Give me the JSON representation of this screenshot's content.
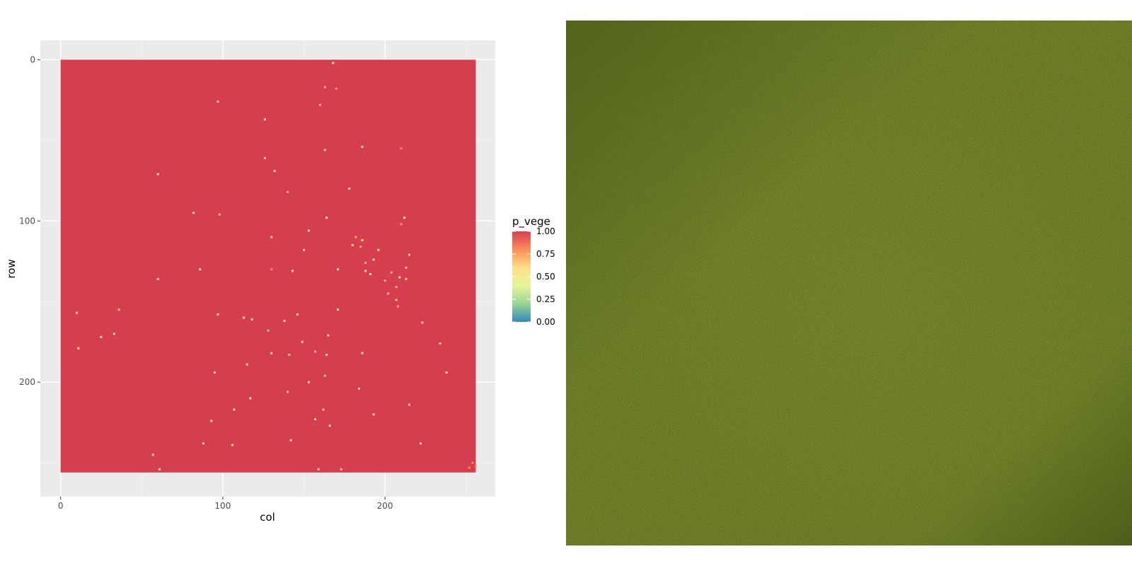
{
  "chart_data": {
    "type": "heatmap",
    "xlabel": "col",
    "ylabel": "row",
    "xlim": [
      -12.5,
      268
    ],
    "ylim_reversed": [
      -12,
      271
    ],
    "x_ticks": [
      0,
      100,
      200
    ],
    "y_ticks": [
      0,
      100,
      200
    ],
    "x_tick_labels": [
      "0",
      "100",
      "200"
    ],
    "y_tick_labels": [
      "0",
      "100",
      "200"
    ],
    "raster_extent": {
      "col": [
        0,
        256
      ],
      "row": [
        0,
        256
      ]
    },
    "background_value": 1.0,
    "fill_scale": {
      "name": "p_vege",
      "palette": "Spectral",
      "breaks": [
        1.0,
        0.75,
        0.5,
        0.25,
        0.0
      ],
      "break_labels": [
        "1.00",
        "0.75",
        "0.50",
        "0.25",
        "0.00"
      ],
      "colors": [
        "#d53e4f",
        "#fc8d59",
        "#fee08b",
        "#e6f598",
        "#99d594",
        "#3288bd"
      ]
    },
    "low_values": [
      [
        168,
        2,
        0.6
      ],
      [
        163,
        17,
        0.7
      ],
      [
        97,
        26,
        0.65
      ],
      [
        160,
        28,
        0.7
      ],
      [
        170,
        18,
        0.75
      ],
      [
        126,
        37,
        0.5
      ],
      [
        186,
        54,
        0.55
      ],
      [
        126,
        61,
        0.6
      ],
      [
        163,
        56,
        0.25
      ],
      [
        210,
        55,
        0.8
      ],
      [
        60,
        71,
        0.5
      ],
      [
        132,
        69,
        0.3
      ],
      [
        140,
        82,
        0.7
      ],
      [
        178,
        80,
        0.6
      ],
      [
        82,
        95,
        0.3
      ],
      [
        98,
        96,
        0.7
      ],
      [
        164,
        98,
        0.35
      ],
      [
        153,
        106,
        0.5
      ],
      [
        130,
        110,
        0.6
      ],
      [
        182,
        110,
        0.7
      ],
      [
        186,
        112,
        0.6
      ],
      [
        210,
        102,
        0.75
      ],
      [
        180,
        115,
        0.5
      ],
      [
        185,
        116,
        0.7
      ],
      [
        196,
        118,
        0.35
      ],
      [
        215,
        121,
        0.55
      ],
      [
        150,
        118,
        0.55
      ],
      [
        188,
        126,
        0.7
      ],
      [
        193,
        124,
        0.3
      ],
      [
        213,
        129,
        0.65
      ],
      [
        188,
        131,
        0.5
      ],
      [
        191,
        133,
        0.6
      ],
      [
        204,
        132,
        0.7
      ],
      [
        209,
        135,
        0.55
      ],
      [
        213,
        136,
        0.6
      ],
      [
        200,
        137,
        0.7
      ],
      [
        171,
        130,
        0.45
      ],
      [
        207,
        141,
        0.7
      ],
      [
        202,
        145,
        0.7
      ],
      [
        207,
        149,
        0.6
      ],
      [
        208,
        153,
        0.75
      ],
      [
        60,
        136,
        0.55
      ],
      [
        143,
        131,
        0.6
      ],
      [
        130,
        130,
        0.8
      ],
      [
        86,
        130,
        0.55
      ],
      [
        171,
        155,
        0.6
      ],
      [
        113,
        160,
        0.5
      ],
      [
        118,
        161,
        0.55
      ],
      [
        10,
        157,
        0.55
      ],
      [
        33,
        170,
        0.3
      ],
      [
        97,
        158,
        0.55
      ],
      [
        138,
        162,
        0.55
      ],
      [
        146,
        158,
        0.6
      ],
      [
        128,
        168,
        0.2
      ],
      [
        165,
        171,
        0.55
      ],
      [
        149,
        175,
        0.6
      ],
      [
        25,
        172,
        0.5
      ],
      [
        11,
        179,
        0.55
      ],
      [
        157,
        181,
        0.7
      ],
      [
        186,
        182,
        0.35
      ],
      [
        164,
        183,
        0.6
      ],
      [
        141,
        183,
        0.65
      ],
      [
        130,
        182,
        0.45
      ],
      [
        115,
        189,
        0.5
      ],
      [
        163,
        196,
        0.2
      ],
      [
        95,
        194,
        0.55
      ],
      [
        153,
        200,
        0.55
      ],
      [
        184,
        204,
        0.6
      ],
      [
        140,
        206,
        0.65
      ],
      [
        117,
        210,
        0.55
      ],
      [
        107,
        217,
        0.5
      ],
      [
        162,
        217,
        0.65
      ],
      [
        193,
        220,
        0.55
      ],
      [
        215,
        214,
        0.6
      ],
      [
        157,
        223,
        0.55
      ],
      [
        166,
        227,
        0.6
      ],
      [
        93,
        224,
        0.6
      ],
      [
        142,
        236,
        0.55
      ],
      [
        88,
        238,
        0.6
      ],
      [
        106,
        239,
        0.55
      ],
      [
        222,
        238,
        0.6
      ],
      [
        57,
        245,
        0.6
      ],
      [
        61,
        254,
        0.55
      ],
      [
        159,
        254,
        0.6
      ],
      [
        173,
        254,
        0.65
      ],
      [
        238,
        194,
        0.6
      ],
      [
        234,
        176,
        0.65
      ],
      [
        223,
        163,
        0.65
      ],
      [
        212,
        98,
        0.55
      ],
      [
        36,
        155,
        0.65
      ],
      [
        254,
        250,
        0.8
      ],
      [
        256,
        252,
        0.8
      ],
      [
        252,
        253,
        0.8
      ]
    ]
  },
  "photo": {
    "description_colors": [
      "#75862a",
      "#5d6e1e",
      "#8a9535",
      "#4a5a18"
    ]
  }
}
